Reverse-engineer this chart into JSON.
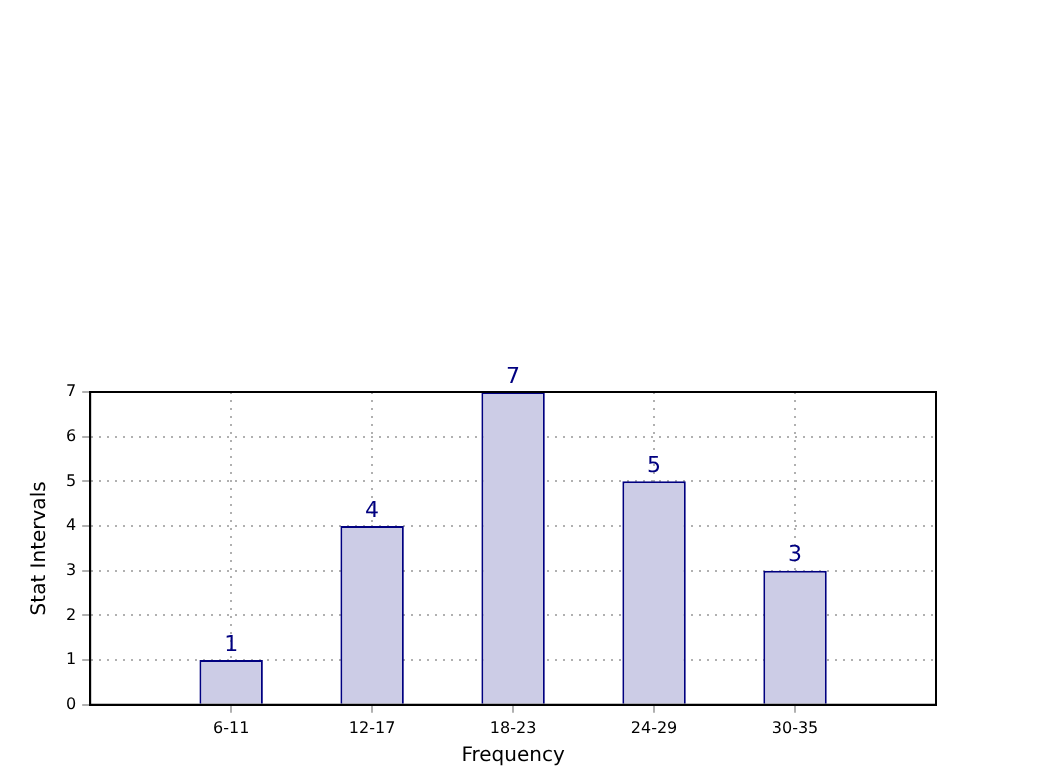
{
  "chart_data": {
    "type": "bar",
    "xlabel": "Frequency",
    "ylabel": "Stat Intervals",
    "categories": [
      "6-11",
      "12-17",
      "18-23",
      "24-29",
      "30-35"
    ],
    "values": [
      1,
      4,
      7,
      5,
      3
    ],
    "color": "#cccce6",
    "ylim": [
      0,
      7
    ],
    "yticks": [
      0,
      1,
      2,
      3,
      4,
      5,
      6,
      7
    ],
    "grid": true,
    "data_labels": true
  }
}
